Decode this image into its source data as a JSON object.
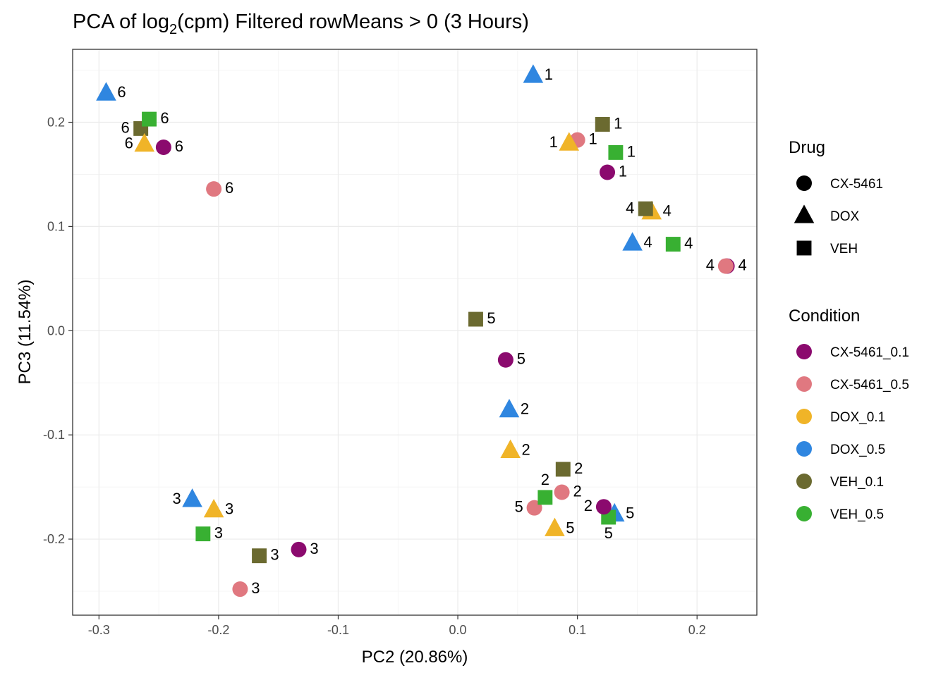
{
  "chart_data": {
    "type": "scatter",
    "title_main": "PCA of log",
    "title_sub": "2",
    "title_rest": "(cpm) Filtered rowMeans > 0 (3 Hours)",
    "xlabel": "PC2 (20.86%)",
    "ylabel": "PC3 (11.54%)",
    "xlim": [
      -0.322,
      0.25
    ],
    "ylim": [
      -0.273,
      0.27
    ],
    "x_ticks": [
      -0.3,
      -0.2,
      -0.1,
      0.0,
      0.1,
      0.2
    ],
    "x_tick_labels": [
      "-0.3",
      "-0.2",
      "-0.1",
      "0.0",
      "0.1",
      "0.2"
    ],
    "y_ticks": [
      -0.2,
      -0.1,
      0.0,
      0.1,
      0.2
    ],
    "y_tick_labels": [
      "-0.2",
      "-0.1",
      "0.0",
      "0.1",
      "0.2"
    ],
    "grid": true,
    "legend_position": "right",
    "shape_legend": {
      "title": "Drug",
      "items": [
        {
          "label": "CX-5461",
          "shape": "circle"
        },
        {
          "label": "DOX",
          "shape": "triangle"
        },
        {
          "label": "VEH",
          "shape": "square"
        }
      ]
    },
    "color_legend": {
      "title": "Condition",
      "items": [
        {
          "label": "CX-5461_0.1",
          "color": "#8b0a6e"
        },
        {
          "label": "CX-5461_0.5",
          "color": "#e07880"
        },
        {
          "label": "DOX_0.1",
          "color": "#f0b428"
        },
        {
          "label": "DOX_0.5",
          "color": "#2f86e0"
        },
        {
          "label": "VEH_0.1",
          "color": "#6b6a30"
        },
        {
          "label": "VEH_0.5",
          "color": "#38b032"
        }
      ]
    },
    "points": [
      {
        "individual": "1",
        "drug": "DOX",
        "condition": "DOX_0.5",
        "x": 0.063,
        "y": 0.245
      },
      {
        "individual": "1",
        "drug": "VEH",
        "condition": "VEH_0.1",
        "x": 0.121,
        "y": 0.198
      },
      {
        "individual": "1",
        "drug": "CX-5461",
        "condition": "CX-5461_0.5",
        "x": 0.1,
        "y": 0.183
      },
      {
        "individual": "1",
        "drug": "DOX",
        "condition": "DOX_0.1",
        "x": 0.093,
        "y": 0.18
      },
      {
        "individual": "1",
        "drug": "VEH",
        "condition": "VEH_0.5",
        "x": 0.132,
        "y": 0.171
      },
      {
        "individual": "1",
        "drug": "CX-5461",
        "condition": "CX-5461_0.1",
        "x": 0.125,
        "y": 0.152
      },
      {
        "individual": "6",
        "drug": "DOX",
        "condition": "DOX_0.5",
        "x": -0.294,
        "y": 0.228
      },
      {
        "individual": "6",
        "drug": "VEH",
        "condition": "VEH_0.1",
        "x": -0.265,
        "y": 0.194
      },
      {
        "individual": "6",
        "drug": "VEH",
        "condition": "VEH_0.5",
        "x": -0.258,
        "y": 0.203
      },
      {
        "individual": "6",
        "drug": "DOX",
        "condition": "DOX_0.1",
        "x": -0.262,
        "y": 0.179
      },
      {
        "individual": "6",
        "drug": "CX-5461",
        "condition": "CX-5461_0.1",
        "x": -0.246,
        "y": 0.176
      },
      {
        "individual": "6",
        "drug": "CX-5461",
        "condition": "CX-5461_0.5",
        "x": -0.204,
        "y": 0.136
      },
      {
        "individual": "4",
        "drug": "DOX",
        "condition": "DOX_0.1",
        "x": 0.162,
        "y": 0.114
      },
      {
        "individual": "4",
        "drug": "VEH",
        "condition": "VEH_0.1",
        "x": 0.157,
        "y": 0.117
      },
      {
        "individual": "4",
        "drug": "DOX",
        "condition": "DOX_0.5",
        "x": 0.146,
        "y": 0.084
      },
      {
        "individual": "4",
        "drug": "VEH",
        "condition": "VEH_0.5",
        "x": 0.18,
        "y": 0.083
      },
      {
        "individual": "4",
        "drug": "CX-5461",
        "condition": "CX-5461_0.1",
        "x": 0.225,
        "y": 0.062
      },
      {
        "individual": "4",
        "drug": "CX-5461",
        "condition": "CX-5461_0.5",
        "x": 0.224,
        "y": 0.062
      },
      {
        "individual": "5",
        "drug": "VEH",
        "condition": "VEH_0.1",
        "x": 0.015,
        "y": 0.011
      },
      {
        "individual": "5",
        "drug": "CX-5461",
        "condition": "CX-5461_0.1",
        "x": 0.04,
        "y": -0.028
      },
      {
        "individual": "5",
        "drug": "CX-5461",
        "condition": "CX-5461_0.5",
        "x": 0.064,
        "y": -0.17
      },
      {
        "individual": "5",
        "drug": "DOX",
        "condition": "DOX_0.1",
        "x": 0.081,
        "y": -0.19
      },
      {
        "individual": "5",
        "drug": "DOX",
        "condition": "DOX_0.5",
        "x": 0.131,
        "y": -0.176
      },
      {
        "individual": "5",
        "drug": "VEH",
        "condition": "VEH_0.5",
        "x": 0.126,
        "y": -0.179
      },
      {
        "individual": "2",
        "drug": "DOX",
        "condition": "DOX_0.5",
        "x": 0.043,
        "y": -0.076
      },
      {
        "individual": "2",
        "drug": "DOX",
        "condition": "DOX_0.1",
        "x": 0.044,
        "y": -0.115
      },
      {
        "individual": "2",
        "drug": "VEH",
        "condition": "VEH_0.1",
        "x": 0.088,
        "y": -0.133
      },
      {
        "individual": "2",
        "drug": "CX-5461",
        "condition": "CX-5461_0.5",
        "x": 0.087,
        "y": -0.155
      },
      {
        "individual": "2",
        "drug": "VEH",
        "condition": "VEH_0.5",
        "x": 0.073,
        "y": -0.16
      },
      {
        "individual": "2",
        "drug": "CX-5461",
        "condition": "CX-5461_0.1",
        "x": 0.122,
        "y": -0.169
      },
      {
        "individual": "3",
        "drug": "DOX",
        "condition": "DOX_0.5",
        "x": -0.222,
        "y": -0.162
      },
      {
        "individual": "3",
        "drug": "DOX",
        "condition": "DOX_0.1",
        "x": -0.204,
        "y": -0.172
      },
      {
        "individual": "3",
        "drug": "VEH",
        "condition": "VEH_0.5",
        "x": -0.213,
        "y": -0.195
      },
      {
        "individual": "3",
        "drug": "VEH",
        "condition": "VEH_0.1",
        "x": -0.166,
        "y": -0.216
      },
      {
        "individual": "3",
        "drug": "CX-5461",
        "condition": "CX-5461_0.1",
        "x": -0.133,
        "y": -0.21
      },
      {
        "individual": "3",
        "drug": "CX-5461",
        "condition": "CX-5461_0.5",
        "x": -0.182,
        "y": -0.248
      }
    ]
  }
}
